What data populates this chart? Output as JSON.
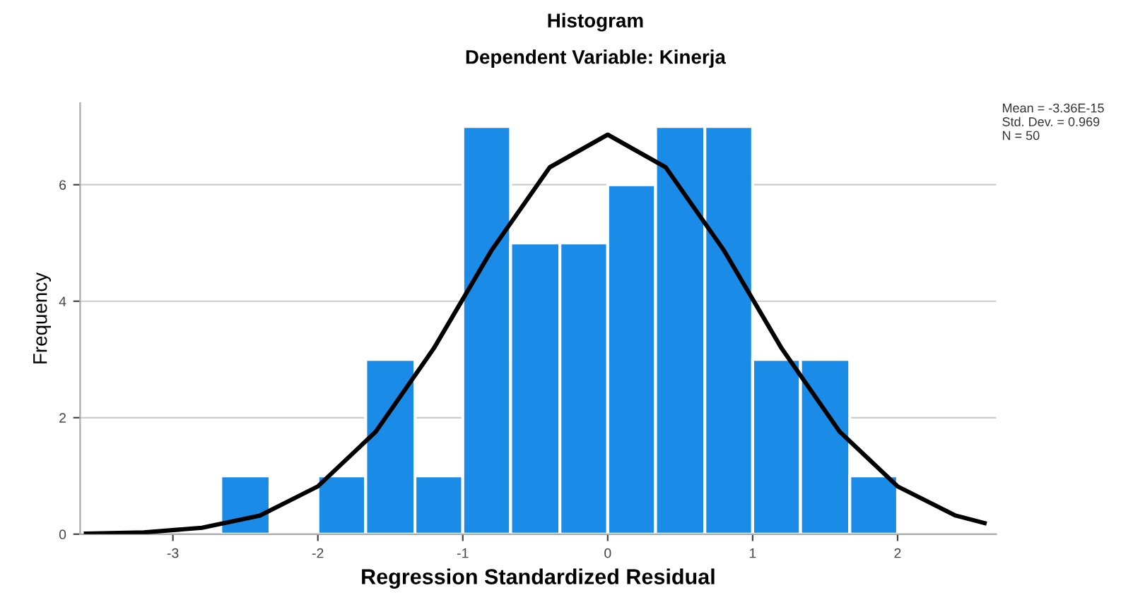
{
  "chart_data": {
    "type": "histogram",
    "title": "Histogram",
    "subtitle": "Dependent Variable: Kinerja",
    "xlabel": "Regression Standardized Residual",
    "ylabel": "Frequency",
    "series": [
      {
        "color": "#1a8ce8",
        "bins": [
          -2.67,
          -2.33,
          -2,
          -1.67,
          -1.33,
          -1,
          -0.67,
          -0.33,
          0,
          0.33,
          0.67,
          1,
          1.33,
          1.67,
          2
        ],
        "values": [
          1,
          0,
          1,
          3,
          1,
          7,
          5,
          5,
          6,
          7,
          7,
          3,
          3,
          1
        ]
      },
      {
        "type": "line",
        "color": "#000000",
        "x": [
          -3.6,
          -3.2,
          -2.8,
          -2.4,
          -2.0,
          -1.6,
          -1.2,
          -0.8,
          -0.4,
          0,
          0.4,
          0.8,
          1.2,
          1.6,
          2.0,
          2.4,
          2.6
        ],
        "values": [
          0.01,
          0.03,
          0.11,
          0.32,
          0.82,
          1.76,
          3.19,
          4.88,
          6.3,
          6.86,
          6.3,
          4.88,
          3.19,
          1.76,
          0.82,
          0.32,
          0.19
        ]
      }
    ],
    "xlim": [
      -3.64,
      2.68
    ],
    "xticks": [
      -3,
      -2,
      -1,
      0,
      1,
      2
    ],
    "ylim": [
      0,
      7.4
    ],
    "yticks": [
      0,
      2,
      4,
      6
    ],
    "grid": "y",
    "annotations": [
      "Mean = -3.36E-15\nStd. Dev. = 0.969\nN = 50"
    ]
  }
}
